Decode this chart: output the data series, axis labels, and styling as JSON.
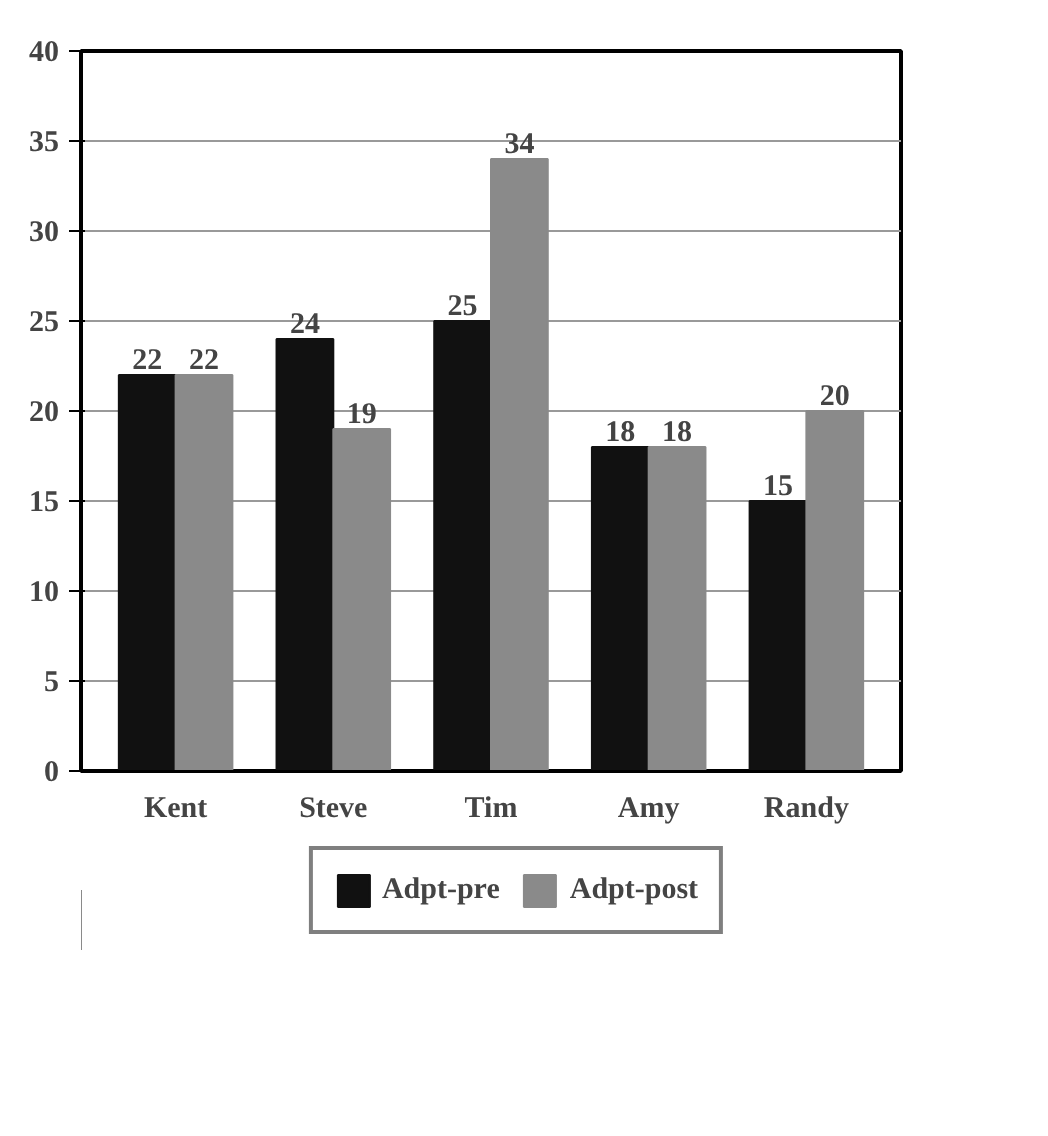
{
  "chart_data": {
    "type": "bar",
    "categories": [
      "Kent",
      "Steve",
      "Tim",
      "Amy",
      "Randy"
    ],
    "series": [
      {
        "name": "Adpt-pre",
        "color": "#111111",
        "values": [
          22,
          24,
          25,
          18,
          15
        ]
      },
      {
        "name": "Adpt-post",
        "color": "#8a8a8a",
        "values": [
          22,
          19,
          34,
          18,
          20
        ]
      }
    ],
    "ylim": [
      0,
      40
    ],
    "yticks": [
      0,
      5,
      10,
      15,
      20,
      25,
      30,
      35,
      40
    ],
    "grid": "y",
    "legend": "bottom",
    "data_labels": true
  }
}
